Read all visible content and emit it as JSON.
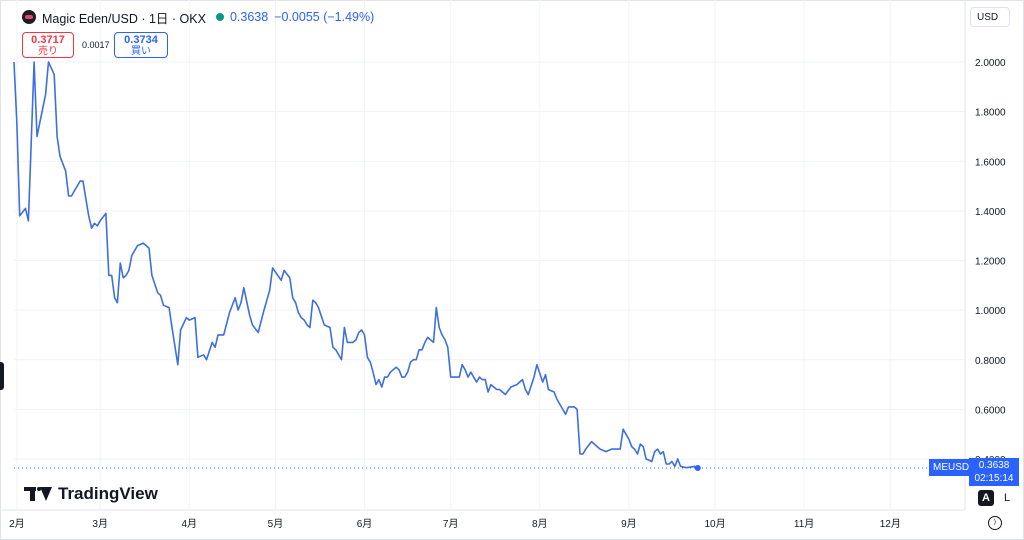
{
  "header": {
    "title": "Magic Eden/USD · 1日 · OKX",
    "last_price": "0.3638",
    "change": "−0.0055 (−1.49%)"
  },
  "trade": {
    "sell_price": "0.3717",
    "sell_label": "売り",
    "spread": "0.0017",
    "buy_price": "0.3734",
    "buy_label": "買い"
  },
  "currency_label": "USD",
  "last_price_label": {
    "symbol": "MEUSD",
    "price": "0.3638",
    "countdown": "02:15:14"
  },
  "watermark": "TradingView",
  "scale_buttons": {
    "auto": "A",
    "log": "L"
  },
  "colors": {
    "line": "#3d6fde",
    "up": "#089981",
    "down": "#f23645",
    "accent": "#2962ff"
  },
  "chart_data": {
    "type": "line",
    "series_name": "MEUSD",
    "ylim": [
      0.35,
      2.05
    ],
    "y_ticks": [
      "2.0000",
      "1.8000",
      "1.6000",
      "1.4000",
      "1.2000",
      "1.0000",
      "0.8000",
      "0.6000",
      "0.4000"
    ],
    "x_ticks": [
      {
        "label": "2月",
        "at": "2024-02-01"
      },
      {
        "label": "3月",
        "at": "2024-03-01"
      },
      {
        "label": "4月",
        "at": "2024-04-01"
      },
      {
        "label": "5月",
        "at": "2024-05-01"
      },
      {
        "label": "6月",
        "at": "2024-06-01"
      },
      {
        "label": "7月",
        "at": "2024-07-01"
      },
      {
        "label": "8月",
        "at": "2024-08-01"
      },
      {
        "label": "9月",
        "at": "2024-09-01"
      },
      {
        "label": "10月",
        "at": "2024-10-01"
      },
      {
        "label": "11月",
        "at": "2024-11-01"
      },
      {
        "label": "12月",
        "at": "2024-12-01"
      }
    ],
    "x_range": [
      "2024-01-31",
      "2024-12-27"
    ],
    "points": [
      [
        "2024-01-31",
        2.0
      ],
      [
        "2024-02-01",
        1.75
      ],
      [
        "2024-02-02",
        1.38
      ],
      [
        "2024-02-04",
        1.41
      ],
      [
        "2024-02-05",
        1.36
      ],
      [
        "2024-02-07",
        2.0
      ],
      [
        "2024-02-08",
        1.7
      ],
      [
        "2024-02-11",
        1.87
      ],
      [
        "2024-02-12",
        2.0
      ],
      [
        "2024-02-14",
        1.95
      ],
      [
        "2024-02-15",
        1.7
      ],
      [
        "2024-02-16",
        1.62
      ],
      [
        "2024-02-18",
        1.56
      ],
      [
        "2024-02-19",
        1.46
      ],
      [
        "2024-02-20",
        1.46
      ],
      [
        "2024-02-21",
        1.48
      ],
      [
        "2024-02-23",
        1.52
      ],
      [
        "2024-02-24",
        1.52
      ],
      [
        "2024-02-25",
        1.45
      ],
      [
        "2024-02-26",
        1.38
      ],
      [
        "2024-02-27",
        1.33
      ],
      [
        "2024-02-28",
        1.35
      ],
      [
        "2024-02-29",
        1.34
      ],
      [
        "2024-03-01",
        1.36
      ],
      [
        "2024-03-03",
        1.39
      ],
      [
        "2024-03-04",
        1.14
      ],
      [
        "2024-03-05",
        1.14
      ],
      [
        "2024-03-06",
        1.05
      ],
      [
        "2024-03-07",
        1.03
      ],
      [
        "2024-03-08",
        1.19
      ],
      [
        "2024-03-09",
        1.13
      ],
      [
        "2024-03-10",
        1.14
      ],
      [
        "2024-03-11",
        1.16
      ],
      [
        "2024-03-12",
        1.22
      ],
      [
        "2024-03-14",
        1.26
      ],
      [
        "2024-03-16",
        1.27
      ],
      [
        "2024-03-18",
        1.25
      ],
      [
        "2024-03-19",
        1.14
      ],
      [
        "2024-03-21",
        1.07
      ],
      [
        "2024-03-22",
        1.06
      ],
      [
        "2024-03-23",
        1.02
      ],
      [
        "2024-03-25",
        1.01
      ],
      [
        "2024-03-26",
        0.93
      ],
      [
        "2024-03-28",
        0.78
      ],
      [
        "2024-03-29",
        0.92
      ],
      [
        "2024-03-31",
        0.97
      ],
      [
        "2024-04-01",
        0.96
      ],
      [
        "2024-04-03",
        0.97
      ],
      [
        "2024-04-04",
        0.81
      ],
      [
        "2024-04-06",
        0.82
      ],
      [
        "2024-04-07",
        0.8
      ],
      [
        "2024-04-09",
        0.87
      ],
      [
        "2024-04-10",
        0.85
      ],
      [
        "2024-04-11",
        0.9
      ],
      [
        "2024-04-13",
        0.9
      ],
      [
        "2024-04-15",
        0.99
      ],
      [
        "2024-04-17",
        1.05
      ],
      [
        "2024-04-18",
        1.0
      ],
      [
        "2024-04-19",
        1.03
      ],
      [
        "2024-04-20",
        1.09
      ],
      [
        "2024-04-22",
        0.98
      ],
      [
        "2024-04-23",
        0.94
      ],
      [
        "2024-04-25",
        0.91
      ],
      [
        "2024-04-27",
        1.0
      ],
      [
        "2024-04-29",
        1.08
      ],
      [
        "2024-04-30",
        1.17
      ],
      [
        "2024-05-03",
        1.12
      ],
      [
        "2024-05-04",
        1.16
      ],
      [
        "2024-05-06",
        1.13
      ],
      [
        "2024-05-07",
        1.05
      ],
      [
        "2024-05-08",
        1.03
      ],
      [
        "2024-05-09",
        0.99
      ],
      [
        "2024-05-10",
        0.97
      ],
      [
        "2024-05-11",
        0.96
      ],
      [
        "2024-05-12",
        0.94
      ],
      [
        "2024-05-13",
        0.93
      ],
      [
        "2024-05-14",
        1.04
      ],
      [
        "2024-05-15",
        1.03
      ],
      [
        "2024-05-16",
        1.01
      ],
      [
        "2024-05-18",
        0.94
      ],
      [
        "2024-05-20",
        0.93
      ],
      [
        "2024-05-21",
        0.85
      ],
      [
        "2024-05-22",
        0.84
      ],
      [
        "2024-05-23",
        0.82
      ],
      [
        "2024-05-24",
        0.8
      ],
      [
        "2024-05-25",
        0.93
      ],
      [
        "2024-05-26",
        0.87
      ],
      [
        "2024-05-28",
        0.87
      ],
      [
        "2024-05-29",
        0.88
      ],
      [
        "2024-05-30",
        0.91
      ],
      [
        "2024-05-31",
        0.92
      ],
      [
        "2024-06-01",
        0.9
      ],
      [
        "2024-06-02",
        0.81
      ],
      [
        "2024-06-03",
        0.79
      ],
      [
        "2024-06-04",
        0.75
      ],
      [
        "2024-06-05",
        0.7
      ],
      [
        "2024-06-06",
        0.72
      ],
      [
        "2024-06-07",
        0.69
      ],
      [
        "2024-06-08",
        0.73
      ],
      [
        "2024-06-09",
        0.73
      ],
      [
        "2024-06-10",
        0.75
      ],
      [
        "2024-06-12",
        0.77
      ],
      [
        "2024-06-13",
        0.76
      ],
      [
        "2024-06-14",
        0.73
      ],
      [
        "2024-06-15",
        0.73
      ],
      [
        "2024-06-16",
        0.75
      ],
      [
        "2024-06-17",
        0.79
      ],
      [
        "2024-06-18",
        0.8
      ],
      [
        "2024-06-19",
        0.8
      ],
      [
        "2024-06-20",
        0.84
      ],
      [
        "2024-06-21",
        0.84
      ],
      [
        "2024-06-22",
        0.87
      ],
      [
        "2024-06-23",
        0.89
      ],
      [
        "2024-06-25",
        0.87
      ],
      [
        "2024-06-26",
        1.01
      ],
      [
        "2024-06-27",
        0.93
      ],
      [
        "2024-06-28",
        0.9
      ],
      [
        "2024-06-29",
        0.88
      ],
      [
        "2024-06-30",
        0.85
      ],
      [
        "2024-07-01",
        0.73
      ],
      [
        "2024-07-02",
        0.73
      ],
      [
        "2024-07-04",
        0.73
      ],
      [
        "2024-07-05",
        0.78
      ],
      [
        "2024-07-06",
        0.76
      ],
      [
        "2024-07-07",
        0.73
      ],
      [
        "2024-07-08",
        0.75
      ],
      [
        "2024-07-10",
        0.71
      ],
      [
        "2024-07-11",
        0.73
      ],
      [
        "2024-07-12",
        0.72
      ],
      [
        "2024-07-13",
        0.72
      ],
      [
        "2024-07-14",
        0.67
      ],
      [
        "2024-07-15",
        0.7
      ],
      [
        "2024-07-17",
        0.68
      ],
      [
        "2024-07-18",
        0.68
      ],
      [
        "2024-07-20",
        0.66
      ],
      [
        "2024-07-22",
        0.69
      ],
      [
        "2024-07-24",
        0.7
      ],
      [
        "2024-07-26",
        0.72
      ],
      [
        "2024-07-27",
        0.68
      ],
      [
        "2024-07-28",
        0.66
      ],
      [
        "2024-07-30",
        0.73
      ],
      [
        "2024-07-31",
        0.78
      ],
      [
        "2024-08-02",
        0.71
      ],
      [
        "2024-08-03",
        0.74
      ],
      [
        "2024-08-04",
        0.68
      ],
      [
        "2024-08-06",
        0.67
      ],
      [
        "2024-08-07",
        0.64
      ],
      [
        "2024-08-09",
        0.6
      ],
      [
        "2024-08-10",
        0.58
      ],
      [
        "2024-08-11",
        0.61
      ],
      [
        "2024-08-13",
        0.61
      ],
      [
        "2024-08-14",
        0.6
      ],
      [
        "2024-08-15",
        0.42
      ],
      [
        "2024-08-16",
        0.42
      ],
      [
        "2024-08-17",
        0.44
      ],
      [
        "2024-08-19",
        0.47
      ],
      [
        "2024-08-20",
        0.46
      ],
      [
        "2024-08-22",
        0.44
      ],
      [
        "2024-08-24",
        0.43
      ],
      [
        "2024-08-26",
        0.44
      ],
      [
        "2024-08-29",
        0.44
      ],
      [
        "2024-08-30",
        0.52
      ],
      [
        "2024-08-31",
        0.5
      ],
      [
        "2024-09-01",
        0.48
      ],
      [
        "2024-09-02",
        0.45
      ],
      [
        "2024-09-03",
        0.44
      ],
      [
        "2024-09-04",
        0.42
      ],
      [
        "2024-09-05",
        0.46
      ],
      [
        "2024-09-06",
        0.45
      ],
      [
        "2024-09-07",
        0.4
      ],
      [
        "2024-09-09",
        0.39
      ],
      [
        "2024-09-10",
        0.43
      ],
      [
        "2024-09-11",
        0.44
      ],
      [
        "2024-09-12",
        0.42
      ],
      [
        "2024-09-13",
        0.43
      ],
      [
        "2024-09-14",
        0.38
      ],
      [
        "2024-09-15",
        0.38
      ],
      [
        "2024-09-16",
        0.39
      ],
      [
        "2024-09-17",
        0.37
      ],
      [
        "2024-09-18",
        0.4
      ],
      [
        "2024-09-19",
        0.37
      ],
      [
        "2024-09-21",
        0.365
      ],
      [
        "2024-09-24",
        0.37
      ],
      [
        "2024-09-25",
        0.3638
      ]
    ],
    "last_value": 0.3638,
    "grid": true,
    "legend": "none"
  }
}
